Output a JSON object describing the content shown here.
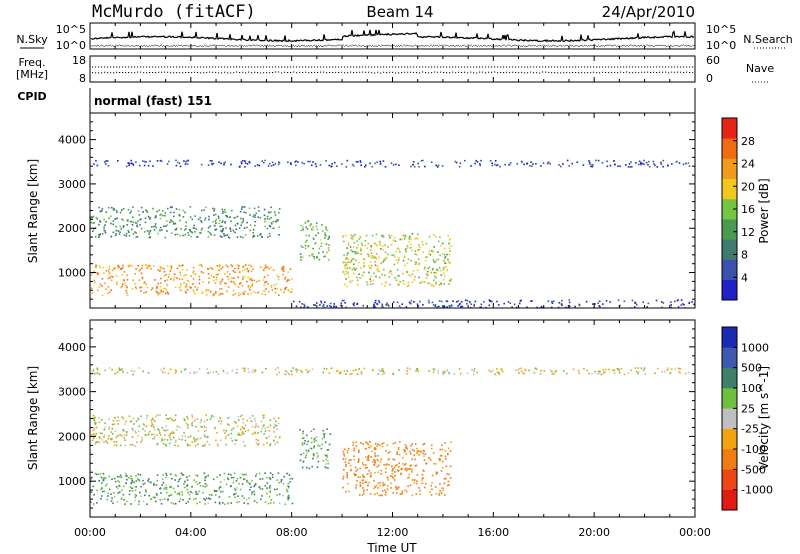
{
  "header": {
    "station": "McMurdo (fitACF)",
    "beam": "Beam 14",
    "date": "24/Apr/2010"
  },
  "aux": {
    "nsky_label": "N.Sky",
    "nsearch_label": "N.Search",
    "noise_ticks": [
      "10^5",
      "10^0"
    ],
    "freq_label": "Freq.",
    "freq_unit": "[MHz]",
    "freq_ticks": [
      "18",
      "8"
    ],
    "nave_label": "Nave",
    "nave_ticks": [
      "60",
      "0"
    ],
    "cpid_label": "CPID",
    "cpid_value": "normal (fast) 151"
  },
  "colors": {
    "power": [
      "#1e22c8",
      "#3a52ae",
      "#3f7a6e",
      "#4a9a52",
      "#74c640",
      "#f2c81c",
      "#f29a1e",
      "#f26a12",
      "#e82418"
    ],
    "velocity": [
      "#1a2ab4",
      "#3c5ab0",
      "#3e8068",
      "#6cc23c",
      "#bfbfbf",
      "#f2a410",
      "#f07c14",
      "#ee4618",
      "#e21a14"
    ]
  },
  "chart_data": [
    {
      "type": "heatmap",
      "name_on_chart": "Power",
      "ylabel": "Slant Range [km]",
      "y_ticks": [
        "1000",
        "2000",
        "3000",
        "4000"
      ],
      "ylim": [
        200,
        4600
      ],
      "colorbar_label": "Power [dB]",
      "colorbar_ticks": [
        "4",
        "8",
        "12",
        "16",
        "20",
        "24",
        "28"
      ],
      "colorbar_range": [
        0,
        32
      ],
      "approx_echo_regions": [
        {
          "t_start": 0.0,
          "t_end": 8.0,
          "range_low": 500,
          "range_high": 1200,
          "power_db": 26
        },
        {
          "t_start": 0.0,
          "t_end": 7.5,
          "range_low": 1800,
          "range_high": 2500,
          "power_db": 12
        },
        {
          "t_start": 8.3,
          "t_end": 9.5,
          "range_low": 1300,
          "range_high": 2200,
          "power_db": 16
        },
        {
          "t_start": 10.0,
          "t_end": 14.3,
          "range_low": 700,
          "range_high": 1900,
          "power_db": 20
        },
        {
          "t_start": 0.0,
          "t_end": 24.0,
          "range_low": 3400,
          "range_high": 3550,
          "power_db": 4
        },
        {
          "t_start": 8.0,
          "t_end": 24.0,
          "range_low": 200,
          "range_high": 400,
          "power_db": 4
        }
      ]
    },
    {
      "type": "heatmap",
      "name_on_chart": "Velocity",
      "ylabel": "Slant Range [km]",
      "y_ticks": [
        "1000",
        "2000",
        "3000",
        "4000"
      ],
      "ylim": [
        200,
        4600
      ],
      "colorbar_label": "Velocity [m s^-1]",
      "colorbar_ticks": [
        "1000",
        "500",
        "100",
        "25",
        "-25",
        "-100",
        "-500",
        "-1000"
      ],
      "approx_echo_regions": [
        {
          "t_start": 0.0,
          "t_end": 8.0,
          "range_low": 500,
          "range_high": 1200,
          "velocity": 100
        },
        {
          "t_start": 0.0,
          "t_end": 7.5,
          "range_low": 1800,
          "range_high": 2500,
          "velocity": 0
        },
        {
          "t_start": 8.3,
          "t_end": 9.5,
          "range_low": 1300,
          "range_high": 2200,
          "velocity": 100
        },
        {
          "t_start": 10.0,
          "t_end": 14.3,
          "range_low": 700,
          "range_high": 1900,
          "velocity": -150
        },
        {
          "t_start": 0.0,
          "t_end": 24.0,
          "range_low": 3400,
          "range_high": 3550,
          "velocity": 0
        }
      ]
    }
  ],
  "x_axis": {
    "ticks": [
      "00:00",
      "04:00",
      "08:00",
      "12:00",
      "16:00",
      "20:00",
      "00:00"
    ],
    "label": "Time UT",
    "range_hours": [
      0,
      24
    ]
  }
}
